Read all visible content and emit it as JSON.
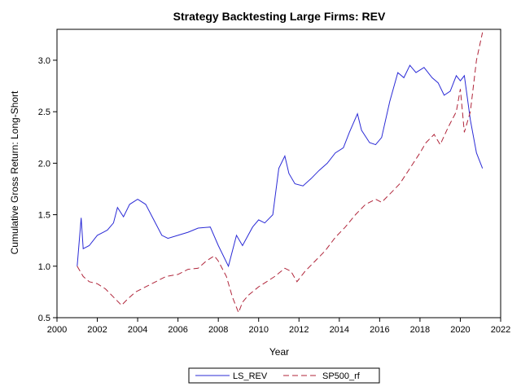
{
  "chart_data": {
    "type": "line",
    "title": "Strategy Backtesting Large Firms: REV",
    "xlabel": "Year",
    "ylabel": "Cumulative Gross Return: Long-Short",
    "xlim": [
      2000,
      2022
    ],
    "ylim": [
      0.5,
      3.3
    ],
    "xticks": [
      "2000",
      "2002",
      "2004",
      "2006",
      "2008",
      "2010",
      "2012",
      "2014",
      "2016",
      "2018",
      "2020",
      "2022"
    ],
    "yticks": [
      "0.5",
      "1.0",
      "1.5",
      "2.0",
      "2.5",
      "3.0"
    ],
    "grid": false,
    "legend_position": "bottom",
    "series": [
      {
        "name": "LS_REV",
        "color": "#2b2bd6",
        "style": "solid",
        "x": [
          2001.0,
          2001.2,
          2001.3,
          2001.6,
          2002.0,
          2002.5,
          2002.8,
          2003.0,
          2003.3,
          2003.6,
          2004.0,
          2004.4,
          2004.8,
          2005.2,
          2005.5,
          2006.0,
          2006.5,
          2007.0,
          2007.6,
          2008.0,
          2008.5,
          2008.9,
          2009.2,
          2009.7,
          2010.0,
          2010.3,
          2010.7,
          2011.0,
          2011.3,
          2011.5,
          2011.8,
          2012.2,
          2012.6,
          2013.0,
          2013.4,
          2013.8,
          2014.2,
          2014.5,
          2014.9,
          2015.1,
          2015.5,
          2015.8,
          2016.1,
          2016.5,
          2016.9,
          2017.2,
          2017.5,
          2017.8,
          2018.2,
          2018.6,
          2018.9,
          2019.2,
          2019.5,
          2019.8,
          2020.0,
          2020.2,
          2020.5,
          2020.8,
          2021.1
        ],
        "values": [
          1.0,
          1.47,
          1.17,
          1.2,
          1.3,
          1.35,
          1.42,
          1.57,
          1.48,
          1.6,
          1.65,
          1.6,
          1.45,
          1.3,
          1.27,
          1.3,
          1.33,
          1.37,
          1.38,
          1.2,
          1.0,
          1.3,
          1.2,
          1.38,
          1.45,
          1.42,
          1.5,
          1.95,
          2.07,
          1.9,
          1.8,
          1.78,
          1.85,
          1.93,
          2.0,
          2.1,
          2.15,
          2.3,
          2.48,
          2.32,
          2.2,
          2.18,
          2.25,
          2.6,
          2.88,
          2.83,
          2.95,
          2.88,
          2.93,
          2.83,
          2.78,
          2.66,
          2.7,
          2.85,
          2.8,
          2.85,
          2.42,
          2.1,
          1.95
        ]
      },
      {
        "name": "SP500_rf",
        "color": "#b0253a",
        "style": "dashed",
        "x": [
          2001.0,
          2001.3,
          2001.6,
          2002.0,
          2002.4,
          2002.8,
          2003.2,
          2003.5,
          2003.9,
          2004.4,
          2004.9,
          2005.4,
          2006.0,
          2006.5,
          2007.0,
          2007.4,
          2007.8,
          2008.0,
          2008.4,
          2008.7,
          2009.0,
          2009.2,
          2009.5,
          2010.0,
          2010.4,
          2010.8,
          2011.3,
          2011.6,
          2011.9,
          2012.3,
          2012.8,
          2013.3,
          2013.8,
          2014.3,
          2014.8,
          2015.3,
          2015.8,
          2016.1,
          2016.6,
          2017.0,
          2017.5,
          2018.0,
          2018.3,
          2018.7,
          2019.0,
          2019.4,
          2019.8,
          2020.0,
          2020.2,
          2020.5,
          2020.8,
          2021.1
        ],
        "values": [
          1.0,
          0.9,
          0.85,
          0.83,
          0.78,
          0.7,
          0.62,
          0.68,
          0.75,
          0.8,
          0.85,
          0.9,
          0.92,
          0.97,
          0.98,
          1.05,
          1.1,
          1.05,
          0.9,
          0.7,
          0.55,
          0.65,
          0.72,
          0.8,
          0.85,
          0.9,
          0.98,
          0.95,
          0.85,
          0.95,
          1.05,
          1.15,
          1.28,
          1.38,
          1.5,
          1.6,
          1.65,
          1.62,
          1.72,
          1.8,
          1.95,
          2.1,
          2.2,
          2.28,
          2.18,
          2.35,
          2.5,
          2.72,
          2.3,
          2.5,
          3.0,
          3.27
        ]
      }
    ]
  }
}
